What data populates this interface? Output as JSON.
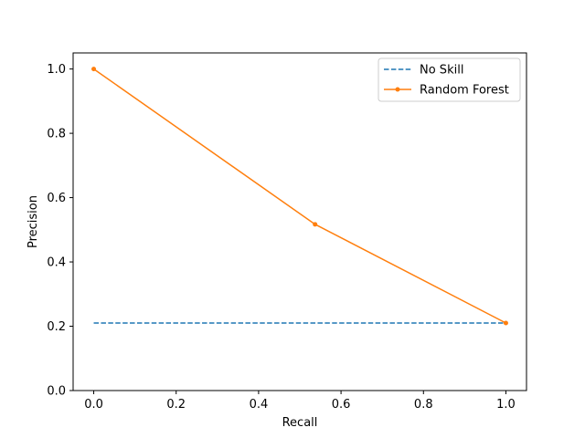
{
  "chart_data": {
    "type": "line",
    "title": "",
    "xlabel": "Recall",
    "ylabel": "Precision",
    "xlim": [
      -0.05,
      1.05
    ],
    "ylim": [
      0.0,
      1.05
    ],
    "xticks": [
      0.0,
      0.2,
      0.4,
      0.6,
      0.8,
      1.0
    ],
    "xtick_labels": [
      "0.0",
      "0.2",
      "0.4",
      "0.6",
      "0.8",
      "1.0"
    ],
    "yticks": [
      0.0,
      0.2,
      0.4,
      0.6,
      0.8,
      1.0
    ],
    "ytick_labels": [
      "0.0",
      "0.2",
      "0.4",
      "0.6",
      "0.8",
      "1.0"
    ],
    "grid": false,
    "legend_position": "top-right",
    "series": [
      {
        "name": "No Skill",
        "style": "dashed",
        "marker": "none",
        "color": "#1f77b4",
        "x": [
          0.0,
          1.0
        ],
        "y": [
          0.21,
          0.21
        ]
      },
      {
        "name": "Random Forest",
        "style": "solid",
        "marker": "dot",
        "color": "#ff7f0e",
        "x": [
          0.0,
          0.537,
          1.0
        ],
        "y": [
          1.0,
          0.517,
          0.21
        ]
      }
    ]
  }
}
